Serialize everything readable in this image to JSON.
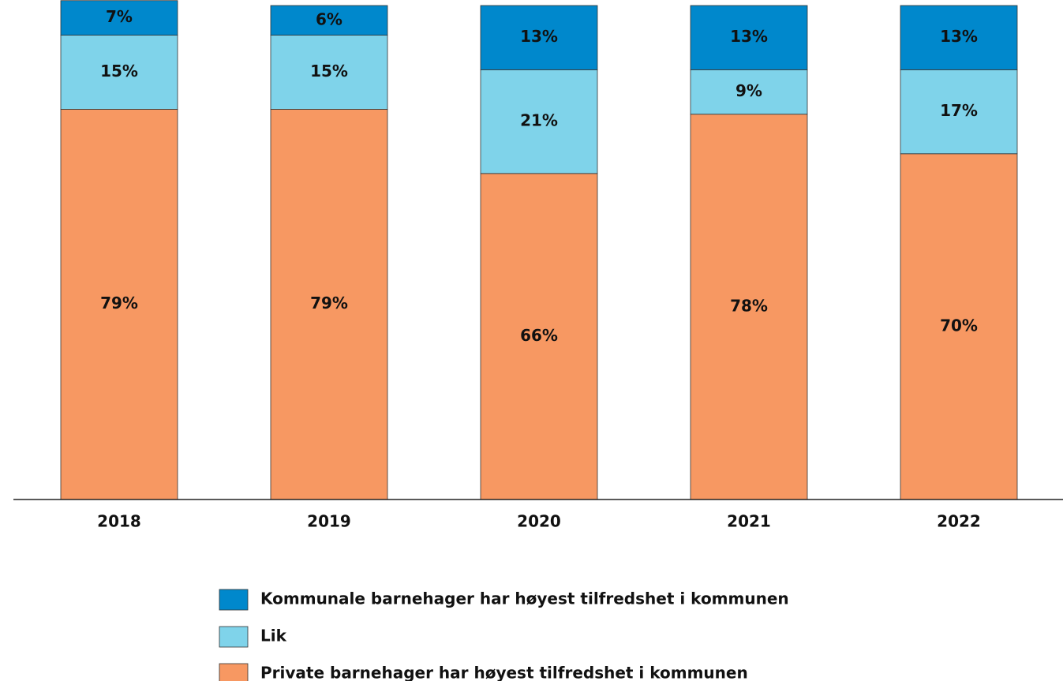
{
  "chart_data": {
    "type": "stacked_bar",
    "categories": [
      "2018",
      "2019",
      "2020",
      "2021",
      "2022"
    ],
    "series": [
      {
        "name": "Private barnehager har høyest tilfredshet i kommunen",
        "color": "#f79862",
        "values": [
          79,
          79,
          66,
          78,
          70
        ],
        "value_labels": [
          "79%",
          "79%",
          "66%",
          "78%",
          "70%"
        ]
      },
      {
        "name": "Lik",
        "color": "#7fd3ea",
        "values": [
          15,
          15,
          21,
          9,
          17
        ],
        "value_labels": [
          "15%",
          "15%",
          "21%",
          "9%",
          "17%"
        ]
      },
      {
        "name": "Kommunale barnehager har høyest tilfredshet i kommunen",
        "color": "#0088cc",
        "values": [
          7,
          6,
          13,
          13,
          13
        ],
        "value_labels": [
          "7%",
          "6%",
          "13%",
          "13%",
          "13%"
        ]
      }
    ],
    "ylim": [
      0,
      100
    ],
    "legend": "bottom"
  }
}
